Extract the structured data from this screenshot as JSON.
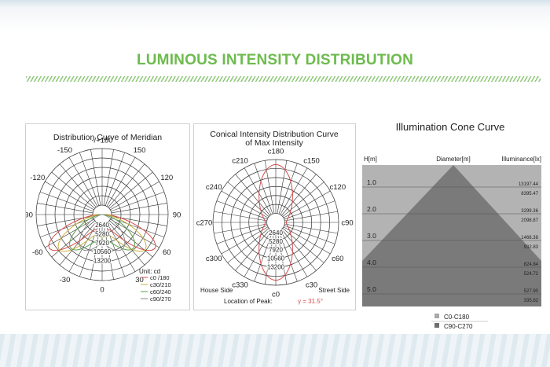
{
  "header": {
    "title": "LUMINOUS INTENSITY DISTRIBUTION"
  },
  "meridian": {
    "title": "Distribution Curve of  Meridian",
    "angle_labels": [
      "-/+180",
      "150",
      "120",
      "90",
      "60",
      "30",
      "0",
      "-30",
      "-60",
      "-90",
      "-120",
      "-150"
    ],
    "rings": [
      "2640",
      "5280",
      "7920",
      "10560",
      "13200"
    ],
    "unit": "Unit: cd",
    "legend": [
      {
        "label": "c0 /180",
        "color": "#d84a4a"
      },
      {
        "label": "c30/210",
        "color": "#c9b23a"
      },
      {
        "label": "c60/240",
        "color": "#5aa04a"
      },
      {
        "label": "c90/270",
        "color": "#8a8a8a"
      }
    ]
  },
  "conical": {
    "title_line1": "Conical Intensity Distribution Curve",
    "title_line2": "of  Max Intensity",
    "angle_labels": [
      "c180",
      "c150",
      "c120",
      "c90",
      "c60",
      "c30",
      "c0",
      "c330",
      "c300",
      "c270",
      "c240",
      "c210"
    ],
    "rings": [
      "2640",
      "5280",
      "7920",
      "10560",
      "13200"
    ],
    "house_side": "House Side",
    "street_side": "Street Side",
    "peak_label": "Location of  Peak:",
    "peak_value": "γ = 31.5°",
    "curve_color": "#d84a4a"
  },
  "cone": {
    "title": "Illumination Cone Curve",
    "col_h": "H[m]",
    "col_d": "Diameter[m]",
    "col_e": "Illuminance[lx]",
    "rows": [
      {
        "h": "1.0",
        "v1": "13197.44",
        "v2": "8395.47"
      },
      {
        "h": "2.0",
        "v1": "3299.36",
        "v2": "2098.87"
      },
      {
        "h": "3.0",
        "v1": "1466.38",
        "v2": "932.83"
      },
      {
        "h": "4.0",
        "v1": "824.84",
        "v2": "524.72"
      },
      {
        "h": "5.0",
        "v1": "527.90",
        "v2": "335.82"
      }
    ],
    "legend": [
      {
        "label": "C0-C180",
        "color": "#a9a9a9"
      },
      {
        "label": "C90-C270",
        "color": "#6f6f6f"
      }
    ]
  }
}
